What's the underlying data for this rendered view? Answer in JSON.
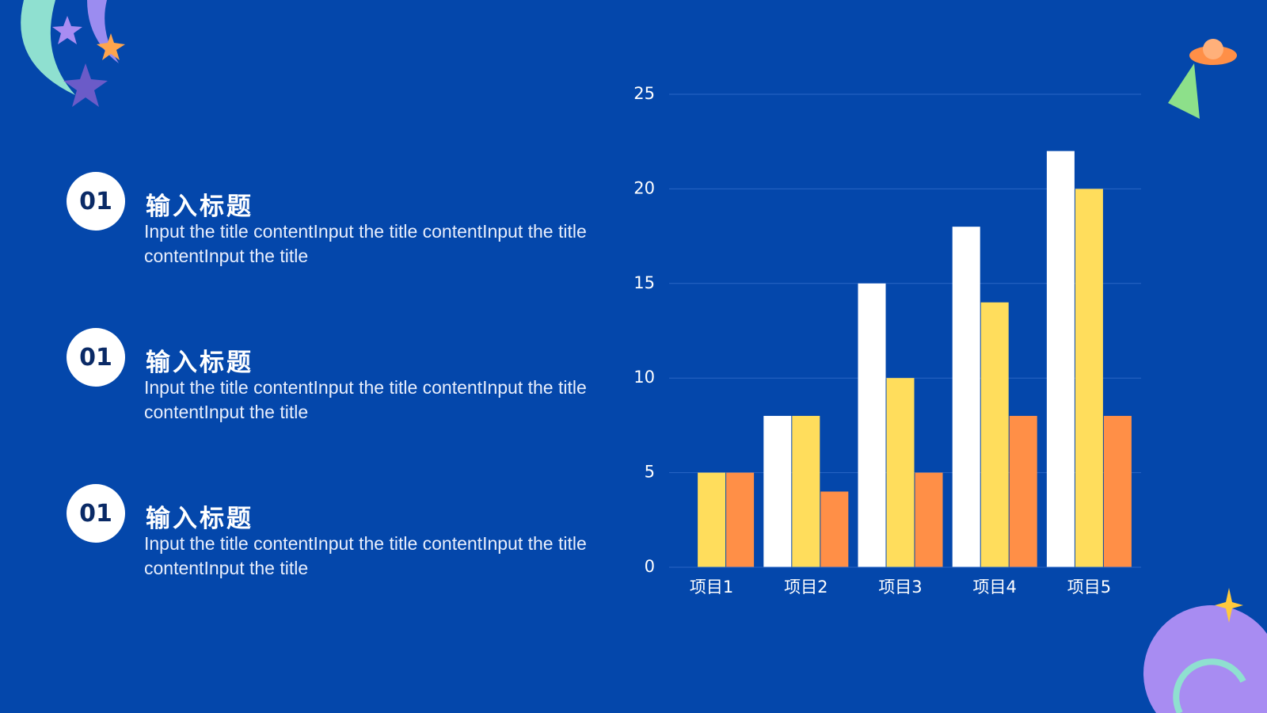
{
  "items": [
    {
      "badge": "01",
      "title": "输入标题",
      "text": "Input the title contentInput the title contentInput the title contentInput the title"
    },
    {
      "badge": "01",
      "title": "输入标题",
      "text": "Input the title contentInput the title contentInput the title contentInput the title"
    },
    {
      "badge": "01",
      "title": "输入标题",
      "text": "Input the title contentInput the title contentInput the title contentInput the title"
    }
  ],
  "chart_data": {
    "type": "bar",
    "categories": [
      "项目1",
      "项目2",
      "项目3",
      "项目4",
      "项目5"
    ],
    "series": [
      {
        "color": "#ffffff",
        "values": [
          0,
          8,
          15,
          18,
          22
        ]
      },
      {
        "color": "#ffdd5c",
        "values": [
          5,
          8,
          10,
          14,
          20
        ]
      },
      {
        "color": "#ff8f47",
        "values": [
          5,
          4,
          5,
          8,
          8
        ]
      }
    ],
    "ylim": [
      0,
      25
    ],
    "yticks": [
      0,
      5,
      10,
      15,
      20,
      25
    ],
    "grid": true
  }
}
